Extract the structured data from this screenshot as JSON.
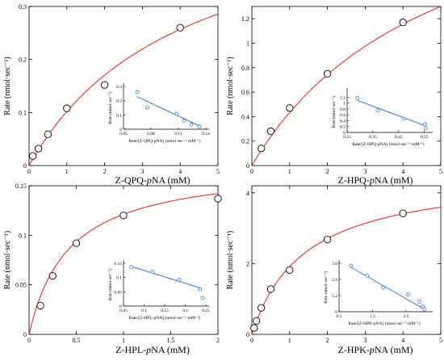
{
  "colors": {
    "fit": "#e8312a",
    "linear": "#3a78c9",
    "marker": "#000000",
    "axis": "#000000"
  },
  "chart_data": [
    {
      "type": "scatter",
      "ylabel": "Rate (nmol·sec⁻¹)",
      "xlabel_parts": [
        "Z-QPQ-",
        "p",
        "NA (mM)"
      ],
      "xlim": [
        0,
        5
      ],
      "ylim": [
        0,
        0.3
      ],
      "xticks": [
        0,
        1,
        2,
        3,
        4,
        5
      ],
      "xticklabels": [
        "0",
        "1",
        "2",
        "3",
        "4",
        "5"
      ],
      "yticks": [
        0,
        0.1,
        0.2,
        0.3
      ],
      "yticklabels": [
        "0",
        "0.1",
        "0.2",
        "0.3"
      ],
      "grid": false,
      "points": {
        "x": [
          0.1,
          0.25,
          0.5,
          1.0,
          2.0,
          4.0
        ],
        "y": [
          0.018,
          0.032,
          0.059,
          0.108,
          0.152,
          0.26
        ]
      },
      "fit": {
        "type": "michaelis_menten",
        "vmax": 0.52,
        "km": 4.1
      },
      "inset": {
        "ylabel": "Rate (nmol·sec⁻¹)",
        "xlabel": "Rate/[Z-QPQ-pNA] (nmol·sec⁻¹·mM⁻¹)",
        "xlim": [
          0.05,
          0.14
        ],
        "ylim": [
          0,
          0.3
        ],
        "xticks": [
          0.05,
          0.08,
          0.11,
          0.14
        ],
        "xticklabels": [
          "0.05",
          "0.08",
          "0.11",
          "0.14"
        ],
        "yticks": [
          0,
          0.1,
          0.2,
          0.3
        ],
        "yticklabels": [
          "0",
          "0.1",
          "0.2",
          "0.3"
        ],
        "points": {
          "x": [
            0.065,
            0.076,
            0.108,
            0.116,
            0.124,
            0.133
          ],
          "y": [
            0.26,
            0.152,
            0.108,
            0.059,
            0.032,
            0.018
          ]
        },
        "line": {
          "x": [
            0.065,
            0.135
          ],
          "y": [
            0.228,
            0.017
          ]
        }
      }
    },
    {
      "type": "scatter",
      "ylabel": "Rate (nmol·sec⁻¹)",
      "xlabel_parts": [
        "Z-HPQ-",
        "p",
        "NA (mM)"
      ],
      "xlim": [
        0,
        5
      ],
      "ylim": [
        0,
        1.3
      ],
      "xticks": [
        0,
        1,
        2,
        3,
        4,
        5
      ],
      "xticklabels": [
        "0",
        "1",
        "2",
        "3",
        "4",
        "5"
      ],
      "yticks": [
        0,
        0.2,
        0.4,
        0.6,
        0.8,
        1.0,
        1.2
      ],
      "yticklabels": [
        "0",
        "0.2",
        "0.4",
        "0.6",
        "0.8",
        "1",
        "1.2"
      ],
      "grid": false,
      "points": {
        "x": [
          0.25,
          0.5,
          1.0,
          2.0,
          4.0
        ],
        "y": [
          0.14,
          0.28,
          0.47,
          0.75,
          1.17
        ]
      },
      "fit": {
        "type": "michaelis_menten",
        "vmax": 2.6,
        "km": 5.0
      },
      "inset": {
        "ylabel": "Rate (nmol·sec⁻¹)",
        "xlabel": "Rate/[Z-HPQ-pNA] (nmol·sec⁻¹·mM⁻¹)",
        "xlim": [
          0.25,
          0.57
        ],
        "ylim": [
          0,
          1.4
        ],
        "xticks": [
          0.25,
          0.35,
          0.45,
          0.55
        ],
        "xticklabels": [
          "0.25",
          "0.35",
          "0.45",
          "0.55"
        ],
        "yticks": [
          0,
          0.2,
          0.4,
          0.6,
          0.8,
          1.0,
          1.2
        ],
        "yticklabels": [
          "0",
          "0.2",
          "0.4",
          "0.6",
          "0.8",
          "1",
          "1.2"
        ],
        "points": {
          "x": [
            0.29,
            0.37,
            0.47,
            0.553,
            0.555
          ],
          "y": [
            1.17,
            0.75,
            0.47,
            0.28,
            0.14
          ]
        },
        "line": {
          "x": [
            0.29,
            0.55
          ],
          "y": [
            1.09,
            0.24
          ]
        }
      }
    },
    {
      "type": "scatter",
      "ylabel": "Rate (nmol·sec⁻¹)",
      "xlabel_parts": [
        "Z-HPL-",
        "p",
        "NA (mM)"
      ],
      "xlim": [
        0,
        2
      ],
      "ylim": [
        0,
        0.15
      ],
      "xticks": [
        0,
        0.5,
        1,
        1.5,
        2
      ],
      "xticklabels": [
        "0",
        "0.5",
        "1",
        "1.5",
        "2"
      ],
      "yticks": [
        0,
        0.05,
        0.1,
        0.15
      ],
      "yticklabels": [
        "0",
        "0.05",
        "0.1",
        "0.15"
      ],
      "grid": false,
      "points": {
        "x": [
          0.12,
          0.25,
          0.5,
          1.0,
          2.0
        ],
        "y": [
          0.029,
          0.059,
          0.092,
          0.12,
          0.137
        ]
      },
      "fit": {
        "type": "michaelis_menten",
        "vmax": 0.172,
        "km": 0.42
      },
      "inset": {
        "ylabel": "Rate (nmol·sec⁻¹)",
        "xlabel": "Rate/[Z-HPL-pNA] (nmol·sec⁻¹·mM⁻¹)",
        "xlim": [
          0.05,
          0.25
        ],
        "ylim": [
          0,
          0.15
        ],
        "xticks": [
          0.05,
          0.1,
          0.15,
          0.2,
          0.25
        ],
        "xticklabels": [
          "0.05",
          "0.1",
          "0.15",
          "0.2",
          "0.25"
        ],
        "yticks": [
          0,
          0.05,
          0.1,
          0.15
        ],
        "yticklabels": [
          "0",
          "0.05",
          "0.1",
          "0.15"
        ],
        "points": {
          "x": [
            0.069,
            0.12,
            0.185,
            0.236,
            0.242
          ],
          "y": [
            0.137,
            0.12,
            0.092,
            0.059,
            0.029
          ]
        },
        "line": {
          "x": [
            0.066,
            0.24
          ],
          "y": [
            0.14,
            0.062
          ]
        }
      }
    },
    {
      "type": "scatter",
      "ylabel": "Rate (nmol·sec⁻¹)",
      "xlabel_parts": [
        "Z-HPK-",
        "p",
        "NA (mM)"
      ],
      "xlim": [
        0,
        5
      ],
      "ylim": [
        0,
        4.2
      ],
      "xticks": [
        0,
        1,
        2,
        3,
        4,
        5
      ],
      "xticklabels": [
        "0",
        "1",
        "2",
        "3",
        "4",
        "5"
      ],
      "yticks": [
        0,
        2,
        4
      ],
      "yticklabels": [
        "0",
        "2",
        "4"
      ],
      "grid": false,
      "points": {
        "x": [
          0.06,
          0.12,
          0.25,
          0.5,
          1.0,
          2.0,
          4.0
        ],
        "y": [
          0.18,
          0.38,
          0.75,
          1.28,
          1.82,
          2.68,
          3.42
        ]
      },
      "fit": {
        "type": "michaelis_menten",
        "vmax": 4.6,
        "km": 1.4
      },
      "inset": {
        "ylabel": "Rate (nmol·sec⁻¹)",
        "xlabel": "Rate/[Z-HPK-pNA] (nmol·sec⁻¹·mM⁻¹)",
        "xlim": [
          0.5,
          3.2
        ],
        "ylim": [
          0,
          3.6
        ],
        "xticks": [
          0.5,
          1.5,
          2.5
        ],
        "xticklabels": [
          "0.5",
          "1.5",
          "2.5"
        ],
        "yticks": [
          0,
          1.2,
          2.4,
          3.6
        ],
        "yticklabels": [
          "0",
          "1.2",
          "2.4",
          "3.6"
        ],
        "points": {
          "x": [
            0.86,
            1.34,
            1.82,
            2.56,
            2.9,
            3.0,
            3.05
          ],
          "y": [
            3.42,
            2.68,
            1.82,
            1.28,
            0.75,
            0.38,
            0.18
          ]
        },
        "line": {
          "x": [
            0.86,
            3.0
          ],
          "y": [
            3.3,
            0.25
          ]
        }
      }
    }
  ]
}
